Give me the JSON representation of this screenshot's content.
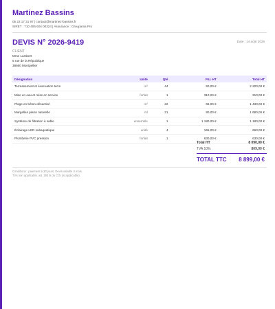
{
  "header": {
    "company": "Martinez Bassins",
    "contact": "05 22 17 31 97  |  contact@martinez-bassins.fr",
    "legal": "SIRET : 710 406 604 00324  |  Assurance : Groupama Pro"
  },
  "quote": {
    "title": "DEVIS N° 2026-9419",
    "date": "Date : 14 août 2026"
  },
  "client": {
    "label": "CLIENT",
    "name": "Mme Lambert",
    "street": "5 rue de la République",
    "city": "38660 Montpellier"
  },
  "table": {
    "headers": [
      "Désignation",
      "Unité",
      "Qté",
      "P.U. HT",
      "Total HT"
    ],
    "rows": [
      [
        "Terrassement et évacuation terre",
        "m³",
        "44",
        "50,00 €",
        "2 200,00 €"
      ],
      [
        "Mise en eau et mise en service",
        "forfait",
        "1",
        "310,00 €",
        "310,00 €"
      ],
      [
        "Plage en béton désactivé",
        "m²",
        "22",
        "65,00 €",
        "1 430,00 €"
      ],
      [
        "Margelles pierre naturelle",
        "ml",
        "21",
        "80,00 €",
        "1 680,00 €"
      ],
      [
        "Système de filtration à sable",
        "ensemble",
        "1",
        "1 180,00 €",
        "1 180,00 €"
      ],
      [
        "Éclairage LED subaquatique",
        "unité",
        "4",
        "165,00 €",
        "660,00 €"
      ],
      [
        "Plomberie PVC pression",
        "forfait",
        "1",
        "630,00 €",
        "630,00 €"
      ]
    ]
  },
  "totals": [
    {
      "label": "Total HT",
      "value": "8 090,00 €"
    },
    {
      "label": "TVA 10%",
      "value": "809,00 €"
    },
    {
      "label": "TOTAL TTC",
      "value": "8 899,00 €"
    }
  ],
  "footer": [
    "Conditions : paiement à 30 jours. Devis valable 3 mois.",
    "TVA non applicable, art. 293 B du CGI (si applicable)."
  ]
}
